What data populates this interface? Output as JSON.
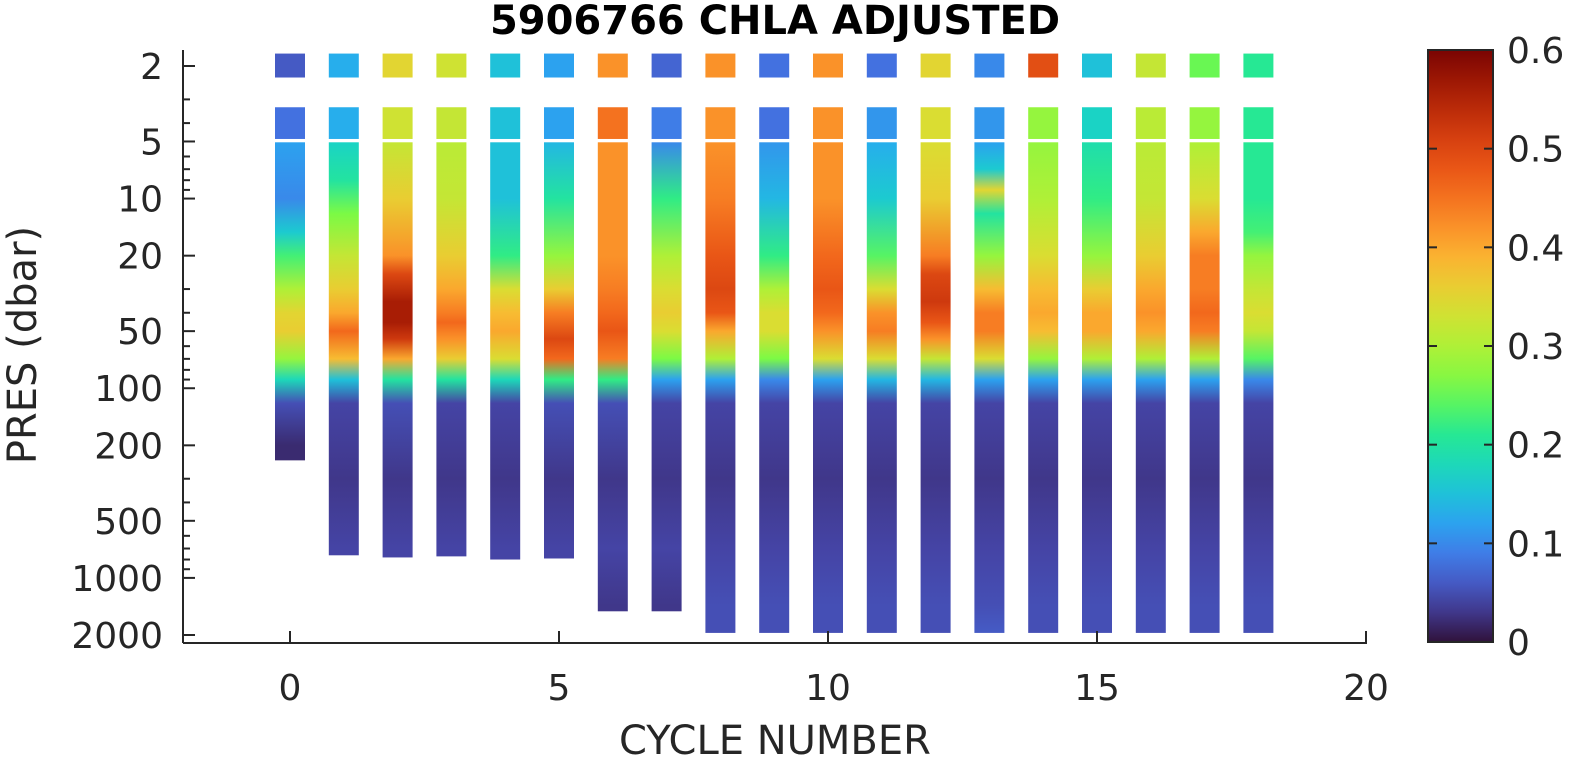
{
  "chart_data": {
    "type": "heatmap",
    "title": "5906766  CHLA ADJUSTED",
    "xlabel": "CYCLE NUMBER",
    "ylabel": "PRES (dbar)",
    "x_scale": "linear",
    "y_scale": "log",
    "y_reversed": true,
    "xlim": [
      -2,
      20
    ],
    "ylim": [
      1.5,
      2200
    ],
    "x_ticks": [
      0,
      5,
      10,
      15,
      20
    ],
    "x_tick_labels": [
      "0",
      "5",
      "10",
      "15",
      "20"
    ],
    "y_ticks": [
      2,
      5,
      10,
      20,
      50,
      100,
      200,
      500,
      1000,
      2000
    ],
    "y_tick_labels": [
      "2",
      "5",
      "10",
      "20",
      "50",
      "100",
      "200",
      "500",
      "1000",
      "2000"
    ],
    "colorbar": {
      "colormap": "turbo",
      "range": [
        0,
        0.6
      ],
      "ticks": [
        0,
        0.1,
        0.2,
        0.3,
        0.4,
        0.5,
        0.6
      ],
      "tick_labels": [
        "0",
        "0.1",
        "0.2",
        "0.3",
        "0.4",
        "0.5",
        "0.6"
      ]
    },
    "profiles": [
      {
        "cycle": 0,
        "max_pres": 240,
        "surface": 0.06,
        "upper": 0.08,
        "pres": [
          5,
          10,
          15,
          20,
          30,
          40,
          50,
          70,
          90,
          120,
          200
        ],
        "values": [
          0.12,
          0.1,
          0.16,
          0.23,
          0.3,
          0.35,
          0.36,
          0.28,
          0.18,
          0.05,
          0.02
        ]
      },
      {
        "cycle": 1,
        "max_pres": 760,
        "surface": 0.13,
        "upper": 0.13,
        "pres": [
          5,
          8,
          12,
          20,
          30,
          40,
          50,
          70,
          90,
          120,
          300,
          700
        ],
        "values": [
          0.17,
          0.2,
          0.26,
          0.32,
          0.36,
          0.4,
          0.46,
          0.38,
          0.15,
          0.04,
          0.03,
          0.04
        ]
      },
      {
        "cycle": 2,
        "max_pres": 780,
        "surface": 0.35,
        "upper": 0.33,
        "pres": [
          5,
          10,
          20,
          25,
          35,
          45,
          55,
          70,
          90,
          120,
          300,
          700
        ],
        "values": [
          0.32,
          0.36,
          0.42,
          0.5,
          0.56,
          0.56,
          0.52,
          0.4,
          0.2,
          0.05,
          0.03,
          0.04
        ]
      },
      {
        "cycle": 3,
        "max_pres": 770,
        "surface": 0.33,
        "upper": 0.32,
        "pres": [
          5,
          10,
          20,
          30,
          40,
          45,
          55,
          70,
          90,
          120,
          300,
          700
        ],
        "values": [
          0.31,
          0.32,
          0.36,
          0.4,
          0.44,
          0.46,
          0.42,
          0.36,
          0.2,
          0.04,
          0.03,
          0.04
        ]
      },
      {
        "cycle": 4,
        "max_pres": 800,
        "surface": 0.15,
        "upper": 0.15,
        "pres": [
          5,
          10,
          20,
          30,
          40,
          50,
          70,
          90,
          120,
          300,
          700
        ],
        "values": [
          0.15,
          0.15,
          0.22,
          0.34,
          0.38,
          0.4,
          0.34,
          0.18,
          0.04,
          0.03,
          0.04
        ]
      },
      {
        "cycle": 5,
        "max_pres": 790,
        "surface": 0.12,
        "upper": 0.12,
        "pres": [
          5,
          10,
          20,
          30,
          40,
          55,
          70,
          90,
          120,
          300,
          700
        ],
        "values": [
          0.14,
          0.2,
          0.28,
          0.36,
          0.44,
          0.5,
          0.46,
          0.22,
          0.05,
          0.03,
          0.04
        ]
      },
      {
        "cycle": 6,
        "max_pres": 1500,
        "surface": 0.42,
        "upper": 0.45,
        "pres": [
          5,
          10,
          20,
          30,
          40,
          50,
          70,
          90,
          120,
          300,
          700,
          1400
        ],
        "values": [
          0.42,
          0.42,
          0.42,
          0.44,
          0.46,
          0.48,
          0.44,
          0.22,
          0.05,
          0.03,
          0.04,
          0.03
        ]
      },
      {
        "cycle": 7,
        "max_pres": 1500,
        "surface": 0.07,
        "upper": 0.09,
        "pres": [
          5,
          10,
          20,
          30,
          40,
          50,
          70,
          90,
          120,
          300,
          700,
          1400
        ],
        "values": [
          0.1,
          0.22,
          0.3,
          0.34,
          0.36,
          0.34,
          0.26,
          0.12,
          0.04,
          0.03,
          0.04,
          0.03
        ]
      },
      {
        "cycle": 8,
        "max_pres": 1950,
        "surface": 0.42,
        "upper": 0.42,
        "pres": [
          5,
          10,
          20,
          30,
          40,
          50,
          70,
          90,
          120,
          300,
          700,
          1400,
          1900
        ],
        "values": [
          0.42,
          0.44,
          0.48,
          0.5,
          0.48,
          0.4,
          0.3,
          0.12,
          0.04,
          0.03,
          0.04,
          0.05,
          0.05
        ]
      },
      {
        "cycle": 9,
        "max_pres": 1950,
        "surface": 0.08,
        "upper": 0.08,
        "pres": [
          5,
          10,
          20,
          30,
          40,
          50,
          70,
          90,
          120,
          300,
          700,
          1400,
          1900
        ],
        "values": [
          0.11,
          0.14,
          0.22,
          0.3,
          0.34,
          0.34,
          0.26,
          0.1,
          0.04,
          0.03,
          0.04,
          0.05,
          0.05
        ]
      },
      {
        "cycle": 10,
        "max_pres": 1950,
        "surface": 0.42,
        "upper": 0.42,
        "pres": [
          5,
          10,
          20,
          30,
          40,
          50,
          70,
          90,
          120,
          300,
          700,
          1400,
          1900
        ],
        "values": [
          0.42,
          0.42,
          0.46,
          0.48,
          0.46,
          0.42,
          0.34,
          0.12,
          0.04,
          0.03,
          0.04,
          0.05,
          0.05
        ]
      },
      {
        "cycle": 11,
        "max_pres": 1950,
        "surface": 0.08,
        "upper": 0.11,
        "pres": [
          5,
          10,
          20,
          30,
          40,
          50,
          70,
          90,
          120,
          300,
          700,
          1400,
          1900
        ],
        "values": [
          0.13,
          0.16,
          0.24,
          0.34,
          0.42,
          0.44,
          0.34,
          0.14,
          0.04,
          0.03,
          0.04,
          0.05,
          0.05
        ]
      },
      {
        "cycle": 12,
        "max_pres": 1950,
        "surface": 0.35,
        "upper": 0.34,
        "pres": [
          5,
          10,
          20,
          25,
          35,
          45,
          55,
          70,
          90,
          120,
          300,
          700,
          1400,
          1900
        ],
        "values": [
          0.34,
          0.36,
          0.44,
          0.5,
          0.52,
          0.48,
          0.42,
          0.32,
          0.14,
          0.04,
          0.03,
          0.04,
          0.05,
          0.05
        ]
      },
      {
        "cycle": 13,
        "max_pres": 1950,
        "surface": 0.1,
        "upper": 0.11,
        "pres": [
          5,
          7,
          9,
          12,
          20,
          30,
          40,
          50,
          70,
          90,
          120,
          300,
          700,
          1400,
          1900
        ],
        "values": [
          0.12,
          0.16,
          0.35,
          0.2,
          0.28,
          0.38,
          0.44,
          0.44,
          0.34,
          0.12,
          0.04,
          0.03,
          0.04,
          0.05,
          0.06
        ]
      },
      {
        "cycle": 14,
        "max_pres": 1950,
        "surface": 0.49,
        "upper": 0.28,
        "pres": [
          5,
          10,
          20,
          30,
          40,
          50,
          70,
          90,
          120,
          300,
          700,
          1400,
          1900
        ],
        "values": [
          0.28,
          0.3,
          0.34,
          0.38,
          0.4,
          0.38,
          0.28,
          0.12,
          0.04,
          0.03,
          0.04,
          0.05,
          0.05
        ]
      },
      {
        "cycle": 15,
        "max_pres": 1950,
        "surface": 0.15,
        "upper": 0.17,
        "pres": [
          5,
          10,
          20,
          30,
          40,
          50,
          70,
          90,
          120,
          300,
          700,
          1400,
          1900
        ],
        "values": [
          0.19,
          0.22,
          0.28,
          0.36,
          0.4,
          0.4,
          0.3,
          0.12,
          0.04,
          0.03,
          0.04,
          0.05,
          0.05
        ]
      },
      {
        "cycle": 16,
        "max_pres": 1950,
        "surface": 0.32,
        "upper": 0.31,
        "pres": [
          5,
          10,
          20,
          30,
          40,
          50,
          70,
          90,
          120,
          300,
          700,
          1400,
          1900
        ],
        "values": [
          0.31,
          0.32,
          0.36,
          0.4,
          0.42,
          0.4,
          0.3,
          0.12,
          0.04,
          0.03,
          0.04,
          0.05,
          0.05
        ]
      },
      {
        "cycle": 17,
        "max_pres": 1950,
        "surface": 0.25,
        "upper": 0.28,
        "pres": [
          5,
          10,
          15,
          20,
          30,
          40,
          50,
          70,
          90,
          120,
          300,
          700,
          1400,
          1900
        ],
        "values": [
          0.3,
          0.34,
          0.4,
          0.44,
          0.44,
          0.46,
          0.44,
          0.3,
          0.12,
          0.04,
          0.03,
          0.04,
          0.05,
          0.05
        ]
      },
      {
        "cycle": 18,
        "max_pres": 1950,
        "surface": 0.21,
        "upper": 0.21,
        "pres": [
          5,
          10,
          15,
          20,
          30,
          40,
          50,
          70,
          90,
          120,
          300,
          700,
          1400,
          1900
        ],
        "values": [
          0.21,
          0.21,
          0.23,
          0.28,
          0.32,
          0.34,
          0.32,
          0.24,
          0.1,
          0.04,
          0.03,
          0.04,
          0.05,
          0.05
        ]
      }
    ]
  }
}
